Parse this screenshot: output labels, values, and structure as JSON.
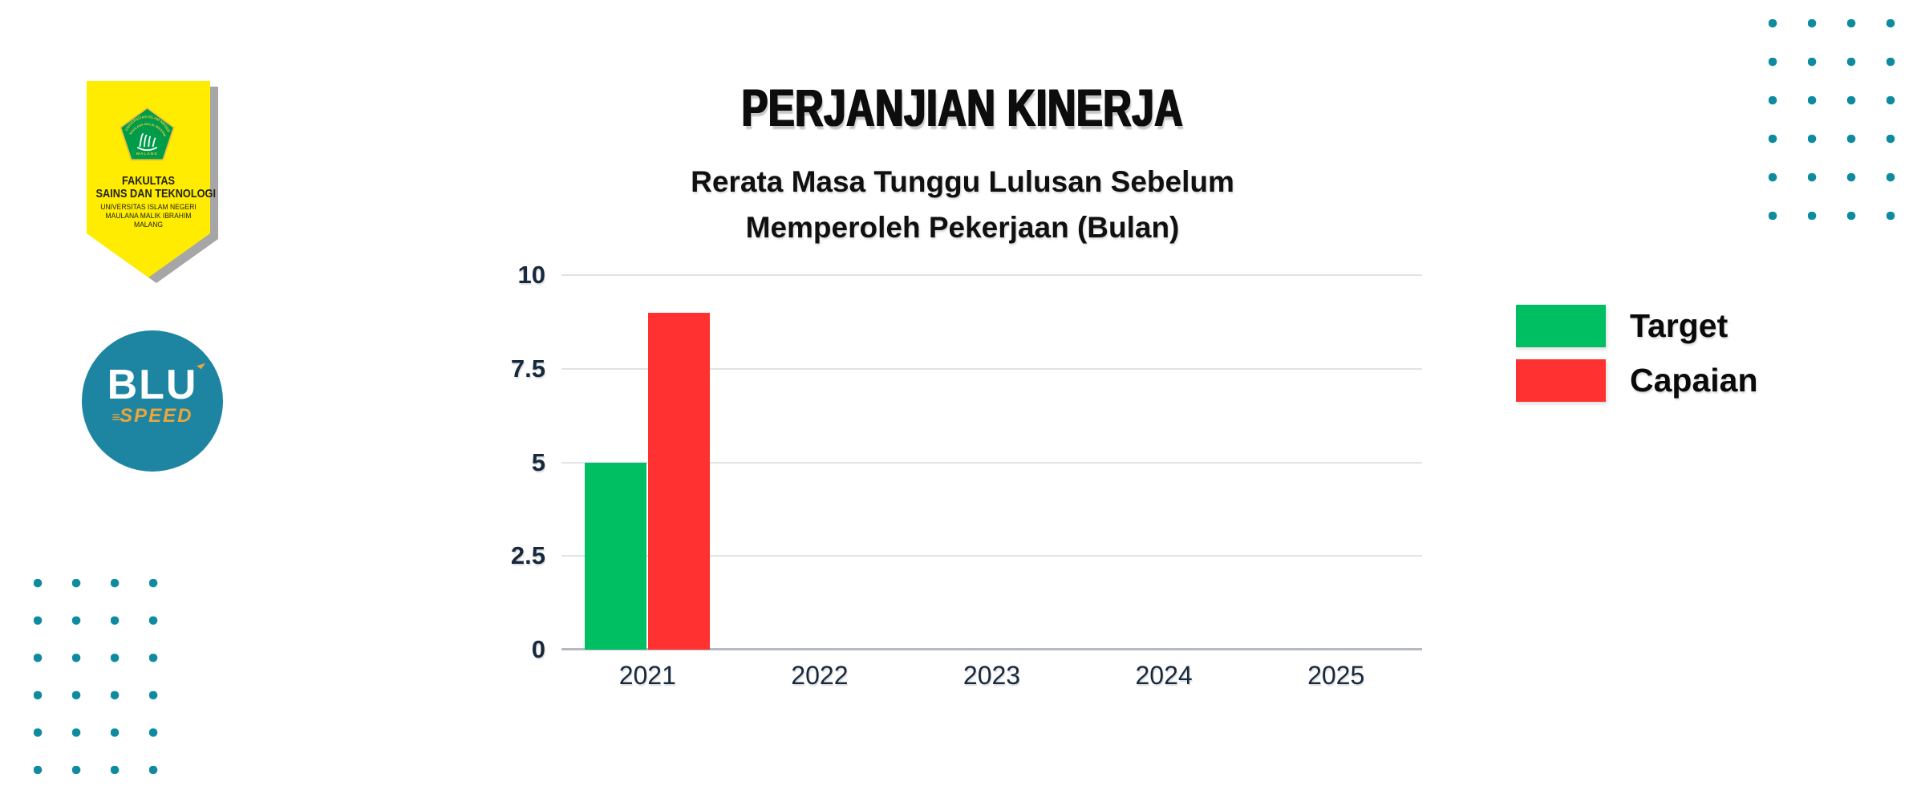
{
  "header": {
    "title": "PERJANJIAN KINERJA",
    "subtitle_line1": "Rerata Masa Tunggu Lulusan Sebelum",
    "subtitle_line2": "Memperoleh Pekerjaan (Bulan)"
  },
  "branding": {
    "faculty_banner": {
      "line1": "FAKULTAS",
      "line2": "SAINS DAN TEKNOLOGI",
      "line3": "UNIVERSITAS ISLAM NEGERI",
      "line4": "MAULANA MALIK IBRAHIM",
      "line5": "MALANG",
      "emblem": {
        "arc_text_top": "UNIVERSITAS ISLAM NEGERI",
        "arc_text_mid": "MAULANA MALIK IBRAHIM",
        "bottom_text": "MALANG"
      }
    },
    "blu_speed_logo": {
      "text_main": "BLU",
      "text_sub": "SPEED"
    }
  },
  "legend": {
    "items": [
      {
        "label": "Target",
        "color": "#00bf63"
      },
      {
        "label": "Capaian",
        "color": "#ff3131"
      }
    ]
  },
  "chart_data": {
    "type": "bar",
    "title": "Rerata Masa Tunggu Lulusan Sebelum Memperoleh Pekerjaan (Bulan)",
    "xlabel": "",
    "ylabel": "",
    "categories": [
      "2021",
      "2022",
      "2023",
      "2024",
      "2025"
    ],
    "series": [
      {
        "name": "Target",
        "color": "#00bf63",
        "values": [
          5,
          null,
          null,
          null,
          null
        ]
      },
      {
        "name": "Capaian",
        "color": "#ff3131",
        "values": [
          9,
          null,
          null,
          null,
          null
        ]
      }
    ],
    "ylim": [
      0,
      10
    ],
    "yticks": [
      0,
      2.5,
      5,
      7.5,
      10
    ],
    "ytick_labels": [
      "0",
      "2.5",
      "5",
      "7.5",
      "10"
    ],
    "grid": "horizontal",
    "legend_position": "right"
  },
  "colors": {
    "teal_dot": "#0e8b9e",
    "navy": "#17293d",
    "banner_yellow": "#ffec00",
    "banner_shadow": "#a6a6a6",
    "emblem_green": "#009c4a",
    "emblem_gold": "#e8c53a",
    "blu_circle": "#1d85a2",
    "gold": "#eca53c",
    "grid": "#e0e4e7",
    "axis_line": "#b4bac0"
  }
}
